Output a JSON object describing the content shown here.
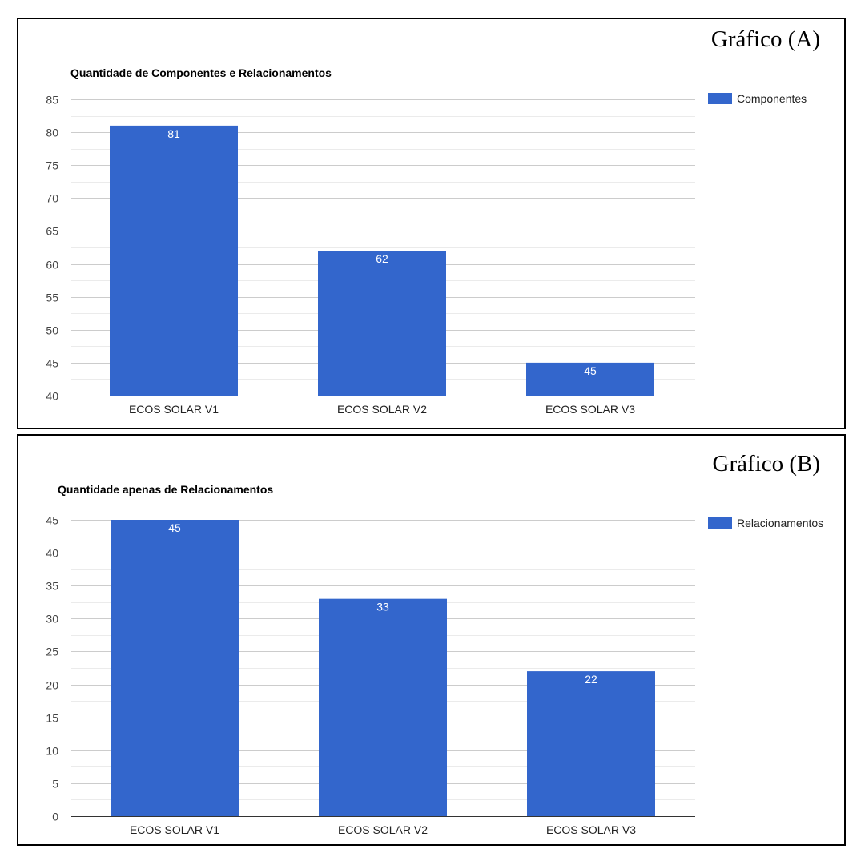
{
  "panels": [
    {
      "id": "a",
      "label": "Gráfico (A)"
    },
    {
      "id": "b",
      "label": "Gráfico (B)"
    }
  ],
  "chart_data": [
    {
      "type": "bar",
      "title": "Quantidade de Componentes e Relacionamentos",
      "categories": [
        "ECOS SOLAR V1",
        "ECOS SOLAR V2",
        "ECOS SOLAR V3"
      ],
      "series": [
        {
          "name": "Componentes",
          "values": [
            81,
            62,
            45
          ],
          "color": "#3366cc"
        }
      ],
      "ylim": [
        40,
        85
      ],
      "yticks": [
        40,
        45,
        50,
        55,
        60,
        65,
        70,
        75,
        80,
        85
      ],
      "xlabel": "",
      "ylabel": "",
      "grid": true,
      "legend": "right"
    },
    {
      "type": "bar",
      "title": "Quantidade apenas de Relacionamentos",
      "categories": [
        "ECOS SOLAR V1",
        "ECOS SOLAR V2",
        "ECOS SOLAR V3"
      ],
      "series": [
        {
          "name": "Relacionamentos",
          "values": [
            45,
            33,
            22
          ],
          "color": "#3366cc"
        }
      ],
      "ylim": [
        0,
        45
      ],
      "yticks": [
        0,
        5,
        10,
        15,
        20,
        25,
        30,
        35,
        40,
        45
      ],
      "xlabel": "",
      "ylabel": "",
      "grid": true,
      "legend": "right"
    }
  ]
}
